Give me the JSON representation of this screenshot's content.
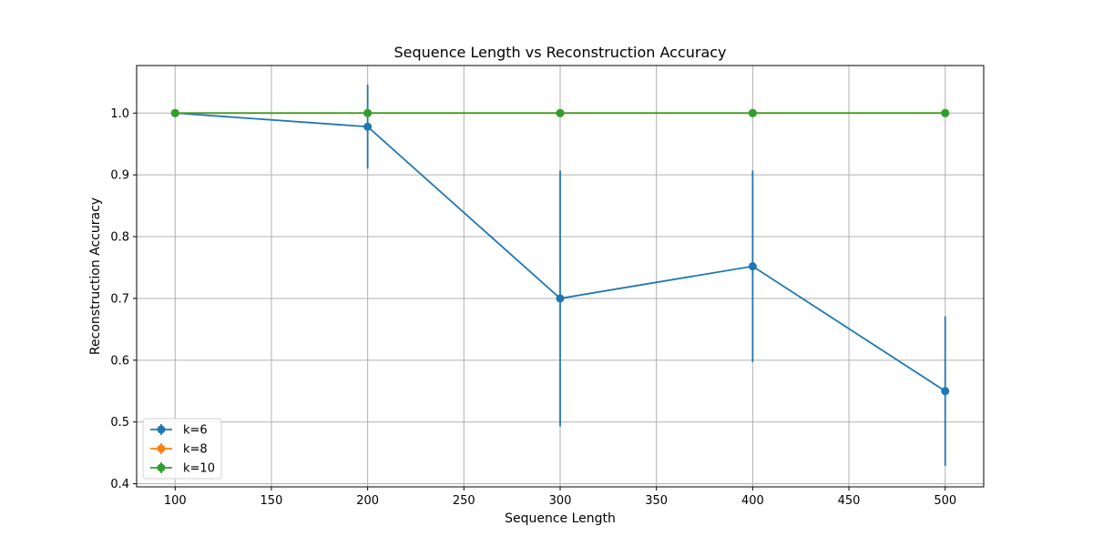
{
  "chart_data": {
    "type": "line",
    "title": "Sequence Length vs Reconstruction Accuracy",
    "xlabel": "Sequence Length",
    "ylabel": "Reconstruction Accuracy",
    "xlim": [
      80,
      520
    ],
    "ylim": [
      0.395,
      1.077
    ],
    "x_ticks": [
      100,
      150,
      200,
      250,
      300,
      350,
      400,
      450,
      500
    ],
    "y_ticks": [
      0.4,
      0.5,
      0.6,
      0.7,
      0.8,
      0.9,
      1.0
    ],
    "x_tick_labels": [
      "100",
      "150",
      "200",
      "250",
      "300",
      "350",
      "400",
      "450",
      "500"
    ],
    "y_tick_labels": [
      "0.4",
      "0.5",
      "0.6",
      "0.7",
      "0.8",
      "0.9",
      "1.0"
    ],
    "grid": true,
    "legend_position": "lower left",
    "x": [
      100,
      200,
      300,
      400,
      500
    ],
    "series": [
      {
        "name": "k=6",
        "color": "#1f77b4",
        "values": [
          1.0,
          0.978,
          0.7,
          0.752,
          0.55
        ],
        "errors": [
          0.0,
          0.068,
          0.207,
          0.155,
          0.121
        ]
      },
      {
        "name": "k=8",
        "color": "#ff7f0e",
        "values": [
          1.0,
          1.0,
          1.0,
          1.0,
          1.0
        ],
        "errors": [
          0.0,
          0.0,
          0.0,
          0.0,
          0.0
        ]
      },
      {
        "name": "k=10",
        "color": "#2ca02c",
        "values": [
          1.0,
          1.0,
          1.0,
          1.0,
          1.0
        ],
        "errors": [
          0.0,
          0.0,
          0.0,
          0.0,
          0.0
        ]
      }
    ]
  }
}
